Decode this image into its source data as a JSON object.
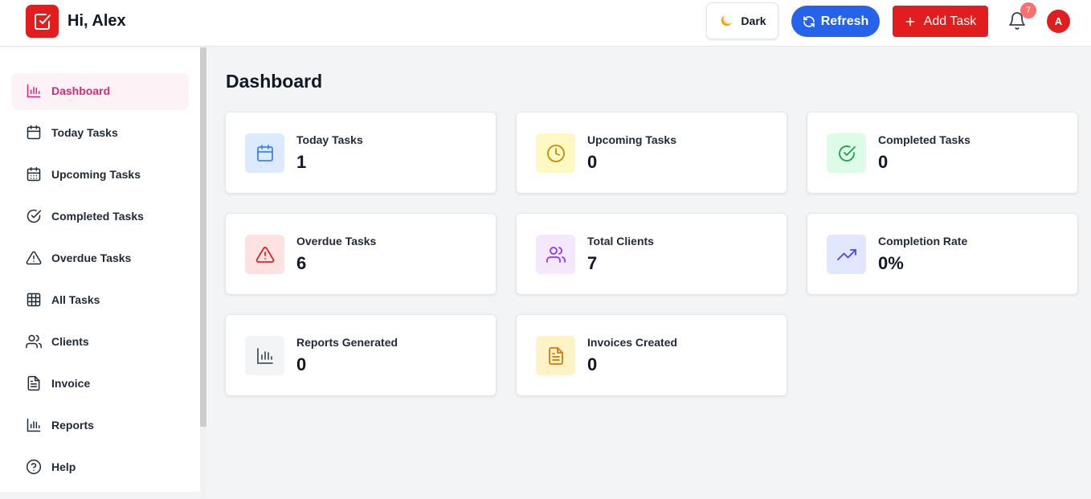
{
  "header": {
    "greeting": "Hi, Alex",
    "theme_label": "Dark",
    "refresh_label": "Refresh",
    "add_task_label": "Add Task",
    "notification_count": "7",
    "avatar_initial": "A"
  },
  "sidebar": {
    "items": [
      {
        "label": "Dashboard",
        "icon": "bar-chart-icon",
        "active": true
      },
      {
        "label": "Today Tasks",
        "icon": "calendar-icon"
      },
      {
        "label": "Upcoming Tasks",
        "icon": "calendar-days-icon"
      },
      {
        "label": "Completed Tasks",
        "icon": "check-circle-icon"
      },
      {
        "label": "Overdue Tasks",
        "icon": "alert-triangle-icon"
      },
      {
        "label": "All Tasks",
        "icon": "grid-icon"
      },
      {
        "label": "Clients",
        "icon": "users-icon"
      },
      {
        "label": "Invoice",
        "icon": "file-text-icon"
      },
      {
        "label": "Reports",
        "icon": "bar-chart-icon"
      },
      {
        "label": "Help",
        "icon": "help-circle-icon"
      }
    ]
  },
  "main": {
    "title": "Dashboard",
    "cards": [
      {
        "label": "Today Tasks",
        "value": "1",
        "icon": "calendar-icon",
        "color": "#3b82f6",
        "bg": "#dbeafe"
      },
      {
        "label": "Upcoming Tasks",
        "value": "0",
        "icon": "clock-icon",
        "color": "#ca8a04",
        "bg": "#fef9c3"
      },
      {
        "label": "Completed Tasks",
        "value": "0",
        "icon": "check-circle-icon",
        "color": "#16a34a",
        "bg": "#dcfce7"
      },
      {
        "label": "Overdue Tasks",
        "value": "6",
        "icon": "alert-triangle-icon",
        "color": "#dc2626",
        "bg": "#fee2e2"
      },
      {
        "label": "Total Clients",
        "value": "7",
        "icon": "users-icon",
        "color": "#9333ea",
        "bg": "#f3e8ff"
      },
      {
        "label": "Completion Rate",
        "value": "0%",
        "icon": "trending-up-icon",
        "color": "#4f46e5",
        "bg": "#e0e7ff"
      },
      {
        "label": "Reports Generated",
        "value": "0",
        "icon": "bar-chart-icon",
        "color": "#4b5563",
        "bg": "#f3f4f6"
      },
      {
        "label": "Invoices Created",
        "value": "0",
        "icon": "file-text-icon",
        "color": "#d97706",
        "bg": "#fef3c7"
      }
    ]
  }
}
